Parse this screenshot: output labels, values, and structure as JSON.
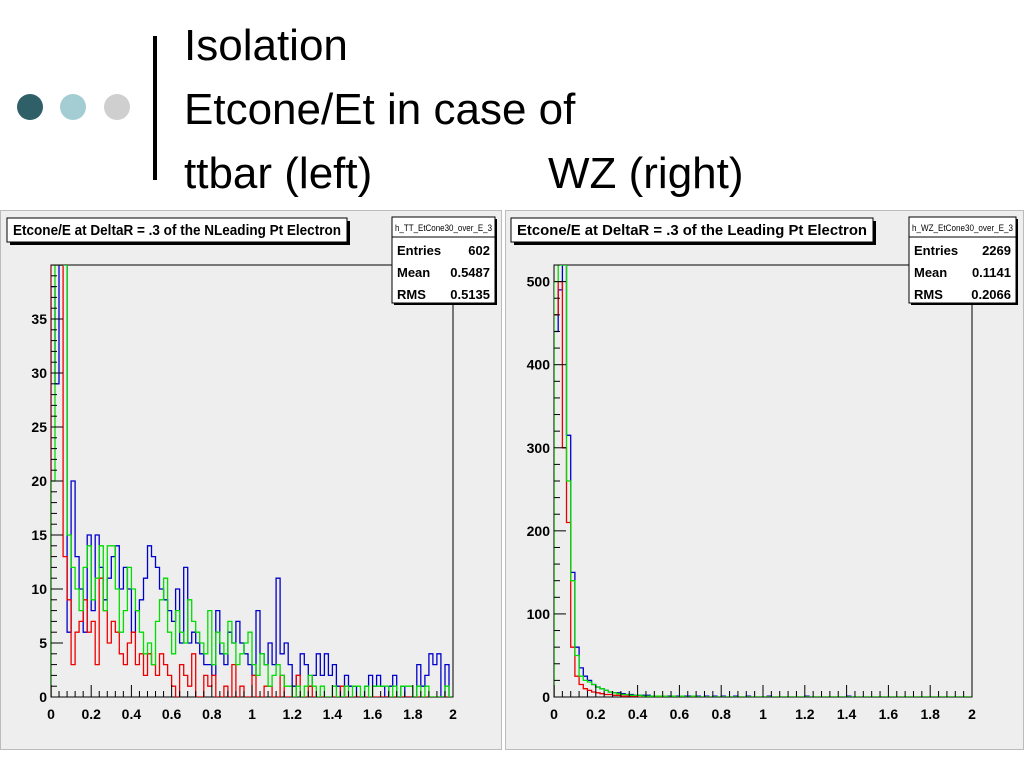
{
  "slide": {
    "title_lines": [
      "Isolation",
      "Etcone/Et in case of",
      "ttbar (left)",
      "WZ (right)"
    ],
    "bullet_colors": [
      "#2f6068",
      "#a3cdd2",
      "#cfcfcf"
    ],
    "series_colors": {
      "blue": "#0000cc",
      "red": "#ee0000",
      "green": "#00dd00"
    }
  },
  "chart_data": [
    {
      "type": "step",
      "title": "Etcone/E at DeltaR = .3 of the NLeading Pt Electron",
      "stats": {
        "name": "h_TT_EtCone30_over_E_3",
        "entries_label": "Entries",
        "entries": "602",
        "mean_label": "Mean",
        "mean": "0.5487",
        "rms_label": "RMS",
        "rms": "0.5135"
      },
      "xlim": [
        0,
        2
      ],
      "ylim": [
        0,
        40
      ],
      "xticks": [
        0,
        0.2,
        0.4,
        0.6,
        0.8,
        1,
        1.2,
        1.4,
        1.6,
        1.8,
        2
      ],
      "xtick_labels": [
        "0",
        "0.2",
        "0.4",
        "0.6",
        "0.8",
        "1",
        "1.2",
        "1.4",
        "1.6",
        "1.8",
        "2"
      ],
      "yticks": [
        0,
        5,
        10,
        15,
        20,
        25,
        30,
        35
      ],
      "ytick_labels": [
        "0",
        "5",
        "10",
        "15",
        "20",
        "25",
        "30",
        "35"
      ],
      "bin_width": 0.02,
      "series": [
        {
          "color": "blue",
          "values": [
            38,
            29,
            40,
            40,
            6,
            20,
            13,
            10,
            6,
            15,
            8,
            15,
            12,
            9,
            11,
            13,
            14,
            10,
            12,
            10,
            6,
            8,
            9,
            11,
            14,
            13,
            12,
            10,
            9,
            8,
            7,
            10,
            5,
            12,
            5,
            6,
            5,
            4,
            3,
            3,
            2,
            8,
            4,
            3,
            6,
            5,
            7,
            5,
            4,
            3,
            2,
            8,
            4,
            3,
            5,
            3,
            11,
            4,
            5,
            3,
            1,
            2,
            4,
            3,
            1,
            2,
            4,
            2,
            4,
            2,
            3,
            1,
            0,
            2,
            1,
            1,
            0,
            0,
            1,
            2,
            1,
            2,
            1,
            0,
            1,
            2,
            0,
            1,
            0,
            0,
            0,
            3,
            1,
            2,
            4,
            3,
            4,
            0,
            3,
            0
          ]
        },
        {
          "color": "red",
          "values": [
            40,
            40,
            40,
            13,
            9,
            3,
            6,
            7,
            9,
            6,
            7,
            3,
            11,
            8,
            5,
            7,
            6,
            4,
            3,
            5,
            6,
            3,
            4,
            2,
            4,
            3,
            2,
            4,
            3,
            2,
            1,
            0,
            3,
            2,
            1,
            4,
            0,
            0,
            2,
            1,
            2,
            0,
            0,
            1,
            0,
            3,
            0,
            1,
            0,
            0,
            2,
            0,
            0,
            1,
            1,
            0,
            0,
            2,
            0,
            0,
            0,
            2,
            0,
            0,
            1,
            0,
            0,
            0,
            0,
            0,
            0,
            0,
            1,
            0,
            0,
            0,
            0,
            0,
            0,
            0,
            0,
            0,
            0,
            0,
            0,
            0,
            0,
            0,
            0,
            0,
            0,
            0,
            0,
            0,
            0,
            0,
            0,
            0,
            0,
            0
          ]
        },
        {
          "color": "green",
          "values": [
            20,
            40,
            40,
            40,
            15,
            12,
            10,
            8,
            12,
            14,
            9,
            11,
            14,
            8,
            14,
            14,
            10,
            6,
            8,
            12,
            10,
            8,
            6,
            4,
            5,
            3,
            7,
            9,
            11,
            6,
            4,
            8,
            6,
            5,
            9,
            7,
            6,
            5,
            4,
            8,
            3,
            6,
            5,
            4,
            7,
            5,
            3,
            4,
            5,
            6,
            3,
            2,
            4,
            3,
            1,
            2,
            3,
            2,
            1,
            1,
            0,
            1,
            0,
            1,
            2,
            1,
            0,
            1,
            0,
            0,
            1,
            0,
            0,
            1,
            0,
            1,
            1,
            0,
            1,
            0,
            1,
            1,
            1,
            1,
            0,
            1,
            0,
            1,
            1,
            1,
            0,
            1,
            0,
            1,
            0,
            0,
            0,
            0,
            1,
            0
          ]
        }
      ]
    },
    {
      "type": "step",
      "title": "Etcone/E at DeltaR = .3 of the Leading Pt Electron",
      "stats": {
        "name": "h_WZ_EtCone30_over_E_3",
        "entries_label": "Entries",
        "entries": "2269",
        "mean_label": "Mean",
        "mean": "0.1141",
        "rms_label": "RMS",
        "rms": "0.2066"
      },
      "xlim": [
        0,
        2
      ],
      "ylim": [
        0,
        520
      ],
      "xticks": [
        0,
        0.2,
        0.4,
        0.6,
        0.8,
        1,
        1.2,
        1.4,
        1.6,
        1.8,
        2
      ],
      "xtick_labels": [
        "0",
        "0.2",
        "0.4",
        "0.6",
        "0.8",
        "1",
        "1.2",
        "1.4",
        "1.6",
        "1.8",
        "2"
      ],
      "yticks": [
        0,
        100,
        200,
        300,
        400,
        500
      ],
      "ytick_labels": [
        "0",
        "100",
        "200",
        "300",
        "400",
        "500"
      ],
      "bin_width": 0.02,
      "series": [
        {
          "color": "blue",
          "values": [
            440,
            490,
            520,
            315,
            150,
            60,
            35,
            25,
            20,
            15,
            12,
            10,
            8,
            6,
            5,
            5,
            4,
            3,
            3,
            2,
            2,
            2,
            2,
            1,
            1,
            1,
            1,
            1,
            1,
            1,
            1,
            1,
            1,
            1,
            1,
            0,
            1,
            0,
            1,
            0,
            1,
            0,
            0,
            1,
            0,
            0,
            1,
            0,
            0,
            0,
            0,
            1,
            0,
            0,
            0,
            0,
            0,
            0,
            0,
            0,
            1,
            0,
            0,
            0,
            0,
            0,
            0,
            0,
            0,
            0,
            1,
            0,
            0,
            0,
            0,
            0,
            0,
            0,
            0,
            0,
            0,
            0,
            0,
            0,
            0,
            0,
            0,
            0,
            0,
            0,
            0,
            0,
            0,
            0,
            0,
            0,
            0,
            0,
            0,
            0
          ]
        },
        {
          "color": "red",
          "values": [
            460,
            500,
            300,
            210,
            60,
            25,
            15,
            10,
            8,
            6,
            5,
            4,
            3,
            3,
            2,
            2,
            1,
            1,
            1,
            1,
            0,
            1,
            0,
            0,
            0,
            0,
            0,
            0,
            0,
            0,
            0,
            0,
            0,
            0,
            0,
            0,
            0,
            0,
            0,
            0,
            0,
            0,
            0,
            0,
            0,
            0,
            0,
            0,
            0,
            0,
            0,
            0,
            0,
            0,
            0,
            0,
            0,
            0,
            0,
            0,
            0,
            0,
            0,
            0,
            0,
            0,
            0,
            0,
            0,
            0,
            0,
            0,
            0,
            0,
            0,
            0,
            0,
            0,
            0,
            0,
            0,
            0,
            0,
            0,
            0,
            0,
            0,
            0,
            0,
            0,
            0,
            0,
            0,
            0,
            0,
            0,
            0,
            0,
            0,
            0
          ]
        },
        {
          "color": "green",
          "values": [
            500,
            520,
            520,
            260,
            140,
            50,
            25,
            20,
            18,
            15,
            12,
            10,
            8,
            6,
            5,
            4,
            3,
            3,
            2,
            2,
            2,
            1,
            1,
            1,
            1,
            1,
            1,
            0,
            1,
            0,
            1,
            0,
            0,
            1,
            0,
            0,
            0,
            0,
            0,
            0,
            0,
            0,
            0,
            0,
            0,
            0,
            0,
            0,
            0,
            0,
            0,
            0,
            0,
            0,
            0,
            0,
            0,
            0,
            0,
            0,
            0,
            0,
            0,
            0,
            0,
            0,
            0,
            0,
            0,
            0,
            0,
            0,
            0,
            0,
            0,
            0,
            0,
            0,
            0,
            0,
            0,
            0,
            0,
            0,
            0,
            0,
            0,
            0,
            0,
            0,
            0,
            0,
            0,
            0,
            0,
            0,
            0,
            0,
            0,
            0
          ]
        }
      ]
    }
  ]
}
